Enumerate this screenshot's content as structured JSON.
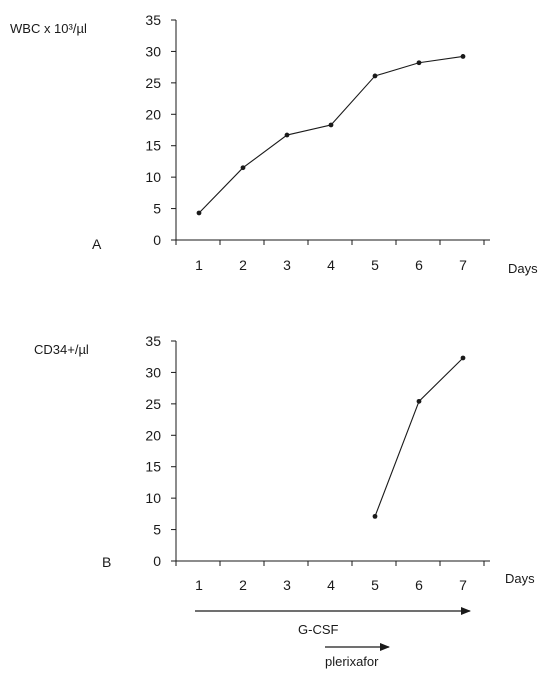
{
  "chart_data": [
    {
      "type": "line",
      "panel_label": "A",
      "ylabel": "WBC x 10³/µl",
      "xlabel": "Days",
      "ylim": [
        0,
        35
      ],
      "yticks": [
        0,
        5,
        10,
        15,
        20,
        25,
        30,
        35
      ],
      "categories": [
        "1",
        "2",
        "3",
        "4",
        "5",
        "6",
        "7"
      ],
      "x": [
        1,
        2,
        3,
        4,
        5,
        6,
        7
      ],
      "values": [
        4.3,
        11.5,
        16.7,
        18.3,
        26.1,
        28.2,
        29.2
      ],
      "grid": false,
      "color": "#1a1a1a"
    },
    {
      "type": "line",
      "panel_label": "B",
      "ylabel": "CD34+/µl",
      "xlabel": "Days",
      "ylim": [
        0,
        35
      ],
      "yticks": [
        0,
        5,
        10,
        15,
        20,
        25,
        30,
        35
      ],
      "categories": [
        "1",
        "2",
        "3",
        "4",
        "5",
        "6",
        "7"
      ],
      "x": [
        5,
        6,
        7
      ],
      "values": [
        7.1,
        25.4,
        32.3
      ],
      "grid": false,
      "color": "#1a1a1a"
    }
  ],
  "annotations": {
    "gcsf_label": "G-CSF",
    "plerixafor_label": "plerixafor"
  }
}
